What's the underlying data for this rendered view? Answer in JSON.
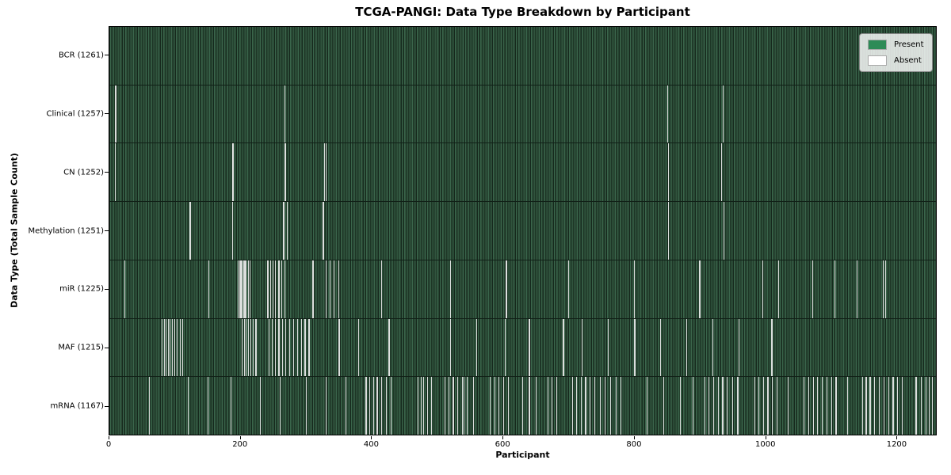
{
  "title": "TCGA-PANGI: Data Type Breakdown by Participant",
  "axes": {
    "xlabel": "Participant",
    "ylabel": "Data Type (Total Sample Count)"
  },
  "legend": {
    "items": [
      {
        "label": "Present",
        "color": "#2e8b57"
      },
      {
        "label": "Absent",
        "color": "#ffffff"
      }
    ]
  },
  "colors": {
    "present_fill": "#2e8b57",
    "absent_fill": "#ffffff",
    "band_stripe_light": "#3a654b",
    "band_stripe_dark": "#25422f",
    "axis": "#000000"
  },
  "chart_data": {
    "type": "heatmap",
    "subtype": "presence-absence-matrix",
    "title": "TCGA-PANGI: Data Type Breakdown by Participant",
    "xlabel": "Participant",
    "ylabel": "Data Type (Total Sample Count)",
    "x_range": [
      0,
      1261
    ],
    "x_ticks": [
      0,
      200,
      400,
      600,
      800,
      1000,
      1200
    ],
    "total_participants": 1261,
    "legend_position": "upper right",
    "grid": false,
    "rows": [
      {
        "name": "BCR",
        "label": "BCR (1261)",
        "total_samples": 1261,
        "absent_count": 0,
        "absent_indices": []
      },
      {
        "name": "Clinical",
        "label": "Clinical (1257)",
        "total_samples": 1257,
        "absent_count": 4,
        "absent_indices": [
          9,
          267,
          851,
          936
        ]
      },
      {
        "name": "CN",
        "label": "CN (1252)",
        "total_samples": 1252,
        "absent_count": 9,
        "absent_indices": [
          8,
          187,
          188,
          267,
          268,
          328,
          330,
          852,
          933
        ]
      },
      {
        "name": "Methylation",
        "label": "Methylation (1251)",
        "total_samples": 1251,
        "absent_count": 10,
        "absent_indices": [
          122,
          123,
          187,
          265,
          266,
          271,
          325,
          326,
          852,
          937
        ]
      },
      {
        "name": "miR",
        "label": "miR (1225)",
        "total_samples": 1225,
        "absent_count": 36,
        "absent_indices": [
          23,
          151,
          196,
          198,
          200,
          202,
          204,
          206,
          208,
          211,
          214,
          241,
          245,
          249,
          253,
          258,
          262,
          267,
          310,
          330,
          336,
          342,
          349,
          415,
          520,
          605,
          700,
          800,
          900,
          996,
          1020,
          1072,
          1106,
          1140,
          1180,
          1184
        ]
      },
      {
        "name": "MAF",
        "label": "MAF (1215)",
        "total_samples": 1215,
        "absent_count": 46,
        "absent_indices": [
          80,
          83,
          86,
          89,
          92,
          95,
          99,
          103,
          107,
          111,
          202,
          205,
          208,
          211,
          215,
          219,
          223,
          243,
          248,
          253,
          258,
          263,
          268,
          274,
          280,
          286,
          292,
          298,
          304,
          350,
          380,
          426,
          520,
          560,
          603,
          640,
          692,
          720,
          760,
          800,
          801,
          840,
          880,
          920,
          960,
          1010
        ]
      },
      {
        "name": "mRNA",
        "label": "mRNA (1167)",
        "total_samples": 1167,
        "absent_count": 94,
        "absent_indices": [
          60,
          120,
          150,
          185,
          230,
          260,
          300,
          330,
          360,
          391,
          396,
          402,
          408,
          415,
          422,
          429,
          470,
          475,
          479,
          485,
          491,
          511,
          517,
          524,
          531,
          538,
          540,
          545,
          555,
          580,
          587,
          594,
          601,
          608,
          630,
          640,
          650,
          668,
          675,
          682,
          706,
          712,
          719,
          726,
          733,
          740,
          748,
          756,
          764,
          772,
          780,
          820,
          845,
          870,
          890,
          908,
          914,
          921,
          928,
          935,
          942,
          950,
          958,
          984,
          990,
          997,
          1004,
          1011,
          1018,
          1035,
          1059,
          1066,
          1073,
          1080,
          1087,
          1094,
          1101,
          1108,
          1125,
          1148,
          1154,
          1160,
          1167,
          1174,
          1181,
          1188,
          1195,
          1202,
          1209,
          1230,
          1238,
          1245,
          1250,
          1255
        ]
      }
    ]
  }
}
